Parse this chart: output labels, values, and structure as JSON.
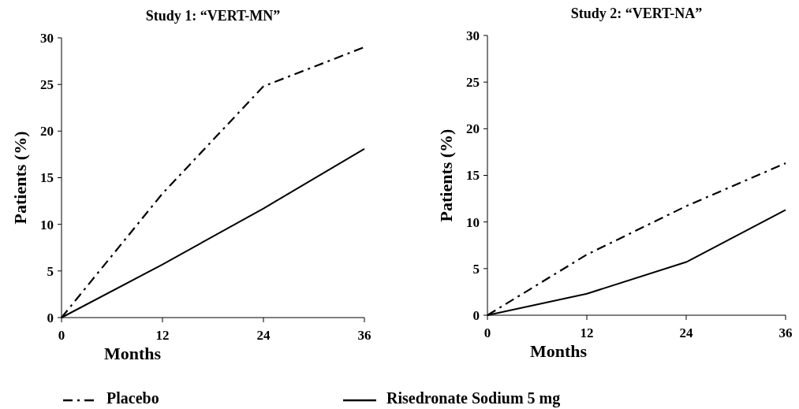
{
  "chart_data": [
    {
      "type": "line",
      "title": "Study 1:  “VERT-MN”",
      "xlabel": "Months",
      "ylabel": "Patients (%)",
      "x": [
        0,
        12,
        24,
        36
      ],
      "xlim": [
        0,
        36
      ],
      "xticks": [
        0,
        12,
        24,
        36
      ],
      "ylim": [
        0,
        30
      ],
      "yticks": [
        0,
        5,
        10,
        15,
        20,
        25,
        30
      ],
      "legend": "bottom",
      "series": [
        {
          "name": "Placebo",
          "color": "#000000",
          "line_style": "dashed",
          "values": [
            0,
            13.3,
            24.8,
            29
          ]
        },
        {
          "name": "Risedronate Sodium 5 mg",
          "color": "#000000",
          "line_style": "solid",
          "values": [
            0,
            5.7,
            11.7,
            18.1
          ]
        }
      ]
    },
    {
      "type": "line",
      "title": "Study 2:  “VERT-NA”",
      "xlabel": "Months",
      "ylabel": "Patients (%)",
      "x": [
        0,
        12,
        24,
        36
      ],
      "xlim": [
        0,
        36
      ],
      "xticks": [
        0,
        12,
        24,
        36
      ],
      "ylim": [
        0,
        30
      ],
      "yticks": [
        0,
        5,
        10,
        15,
        20,
        25,
        30
      ],
      "series": [
        {
          "color": "#000000",
          "line_style": "dashed",
          "values": [
            0,
            6.5,
            11.7,
            16.3
          ]
        },
        {
          "color": "#000000",
          "line_style": "solid",
          "values": [
            0,
            2.3,
            5.7,
            11.3
          ]
        }
      ]
    }
  ]
}
